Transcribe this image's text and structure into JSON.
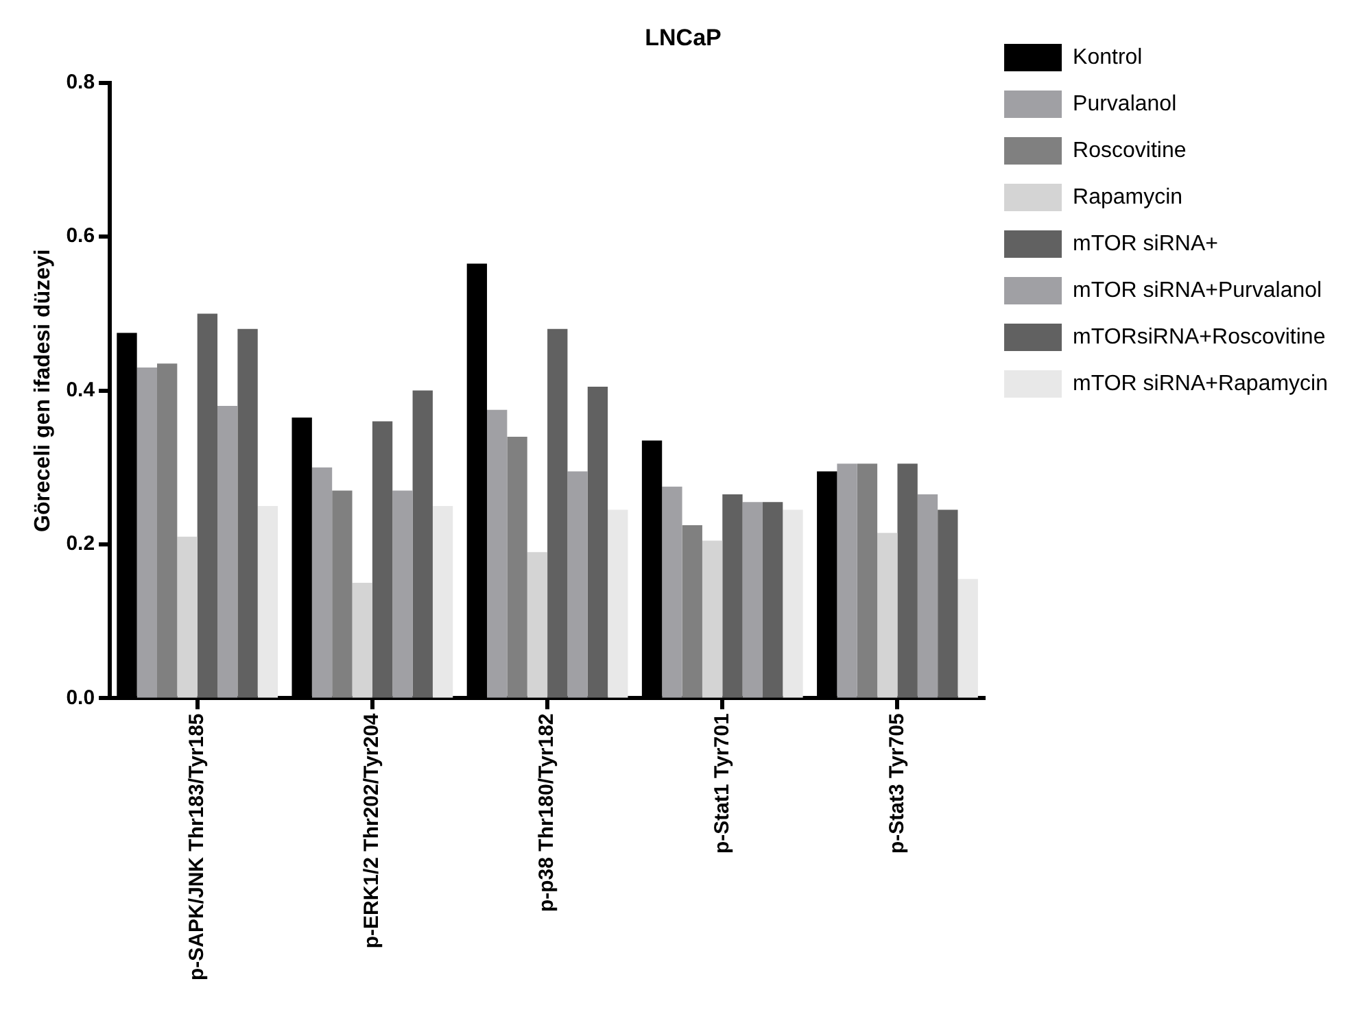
{
  "chart_data": {
    "type": "bar",
    "title": "LNCaP",
    "ylabel": "Göreceli gen ifadesi düzeyi",
    "categories": [
      "p-SAPK/JNK Thr183/Tyr185",
      "p-ERK1/2 Thr202/Tyr204",
      "p-p38 Thr180/Tyr182",
      "p-Stat1 Tyr701",
      "p-Stat3 Tyr705"
    ],
    "series": [
      {
        "name": "Kontrol",
        "color": "#000000",
        "values": [
          0.475,
          0.365,
          0.565,
          0.335,
          0.295
        ]
      },
      {
        "name": "Purvalanol",
        "color": "#a0a0a4",
        "values": [
          0.43,
          0.3,
          0.375,
          0.275,
          0.305
        ]
      },
      {
        "name": "Roscovitine",
        "color": "#808080",
        "values": [
          0.435,
          0.27,
          0.34,
          0.225,
          0.305
        ]
      },
      {
        "name": "Rapamycin",
        "color": "#d4d4d4",
        "values": [
          0.21,
          0.15,
          0.19,
          0.205,
          0.215
        ]
      },
      {
        "name": "mTOR siRNA+",
        "color": "#616161",
        "values": [
          0.5,
          0.36,
          0.48,
          0.265,
          0.305
        ]
      },
      {
        "name": "mTOR siRNA+Purvalanol",
        "color": "#a0a0a4",
        "values": [
          0.38,
          0.27,
          0.295,
          0.255,
          0.265
        ]
      },
      {
        "name": "mTORsiRNA+Roscovitine",
        "color": "#616161",
        "values": [
          0.48,
          0.4,
          0.405,
          0.255,
          0.245
        ]
      },
      {
        "name": "mTOR siRNA+Rapamycin",
        "color": "#e8e8e8",
        "values": [
          0.25,
          0.25,
          0.245,
          0.245,
          0.155
        ]
      }
    ],
    "ylim": [
      0,
      0.8
    ],
    "yticks": [
      {
        "value": 0,
        "label": "0.0"
      },
      {
        "value": 0.2,
        "label": "0.2"
      },
      {
        "value": 0.4,
        "label": "0.4"
      },
      {
        "value": 0.6,
        "label": "0.6"
      },
      {
        "value": 0.8,
        "label": "0.8"
      }
    ],
    "grid": false,
    "legend": "right"
  }
}
